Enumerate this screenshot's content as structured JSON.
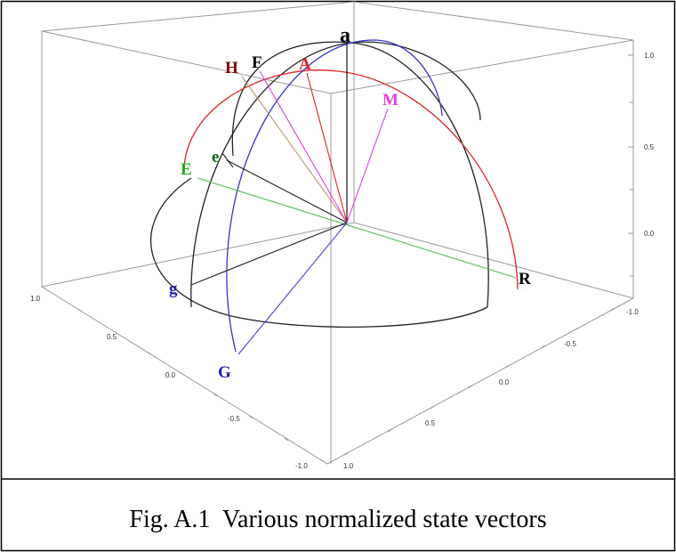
{
  "figure": {
    "caption": "Fig. A.1  Various normalized state vectors",
    "points": {
      "a": "a",
      "H": "H",
      "F": "F",
      "A": "A",
      "M": "M",
      "e": "e",
      "E": "E",
      "g": "g",
      "G": "G",
      "R": "R"
    },
    "axis_right": [
      "1.0",
      "0.5",
      "0.0"
    ],
    "axis_left": [
      "1.0",
      "0.5",
      "0.0",
      "-0.5",
      "-1.0"
    ],
    "axis_bottom": [
      "1.0",
      "0.5",
      "0.0",
      "-0.5",
      "-1.0"
    ]
  }
}
